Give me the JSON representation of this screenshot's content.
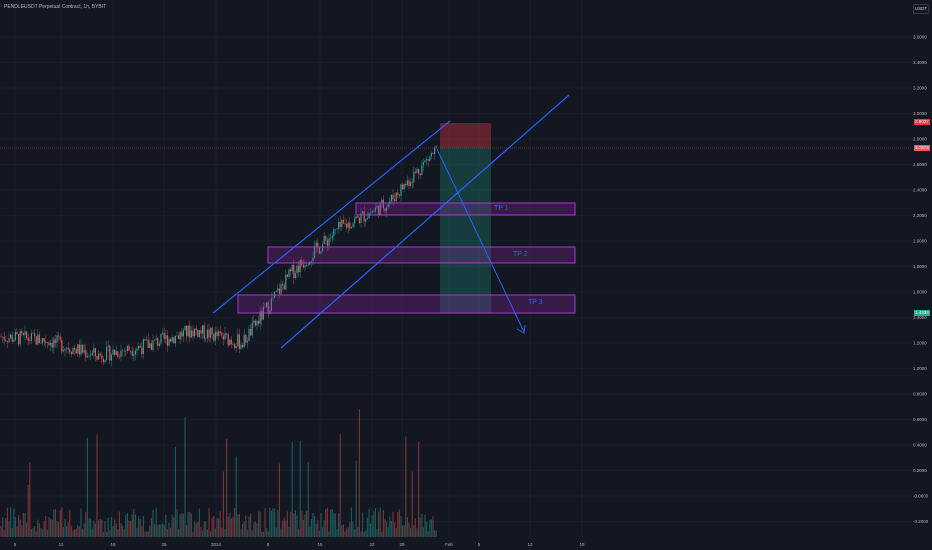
{
  "header": {
    "symbol_title": "PENDLEUSDT Perpetual Contract, 1h, BYBIT",
    "currency_label": "USDT"
  },
  "price_axis": {
    "labels": [
      "3.6000",
      "3.4000",
      "3.2000",
      "3.0000",
      "2.8000",
      "2.6000",
      "2.4000",
      "2.2000",
      "2.0000",
      "1.8000",
      "1.6000",
      "1.4000",
      "1.2000",
      "1.0000",
      "0.8000",
      "0.6000",
      "0.4000",
      "0.2000",
      "-0.0000",
      "-0.2000"
    ],
    "tags": [
      {
        "text": "2.9037",
        "color": "#f23645"
      },
      {
        "text": "2.7573",
        "color": "#f7525f"
      },
      {
        "text": "1.4333",
        "color": "#22ab94"
      }
    ]
  },
  "time_axis": {
    "labels": [
      "5",
      "11",
      "18",
      "25",
      "2024",
      "8",
      "15",
      "22",
      "29",
      "Feb",
      "5",
      "12",
      "19"
    ]
  },
  "annotations": {
    "tp1": "TP 1",
    "tp2": "TP 2",
    "tp3": "TP 3"
  },
  "colors": {
    "background": "#131722",
    "channel_line": "#2962ff",
    "zone_border": "#b131d6",
    "stop_zone": "#f23645",
    "target_zone": "#22ab94",
    "up_candle": "#26a69a",
    "down_candle": "#ef5350"
  },
  "chart_data": {
    "type": "candlestick",
    "ylim": [
      -0.2,
      3.6
    ],
    "trend_channel": "ascending",
    "take_profit_zones": [
      {
        "label": "TP 1",
        "low": 2.27,
        "high": 2.32
      },
      {
        "label": "TP 2",
        "low": 1.84,
        "high": 1.92
      },
      {
        "label": "TP 3",
        "low": 1.42,
        "high": 1.56
      }
    ],
    "short_position": {
      "entry": 2.7573,
      "stop": 2.9037
    },
    "price_path": [
      {
        "x": "5",
        "close": 1.25
      },
      {
        "x": "11",
        "close": 1.22
      },
      {
        "x": "18",
        "close": 1.1
      },
      {
        "x": "25",
        "close": 1.18
      },
      {
        "x": "2024",
        "close": 1.3
      },
      {
        "x": "8",
        "close": 1.2
      },
      {
        "x": "15",
        "close": 1.75
      },
      {
        "x": "22",
        "close": 2.1
      },
      {
        "x": "29",
        "close": 2.3
      },
      {
        "x": "Feb",
        "close": 2.72
      }
    ]
  }
}
